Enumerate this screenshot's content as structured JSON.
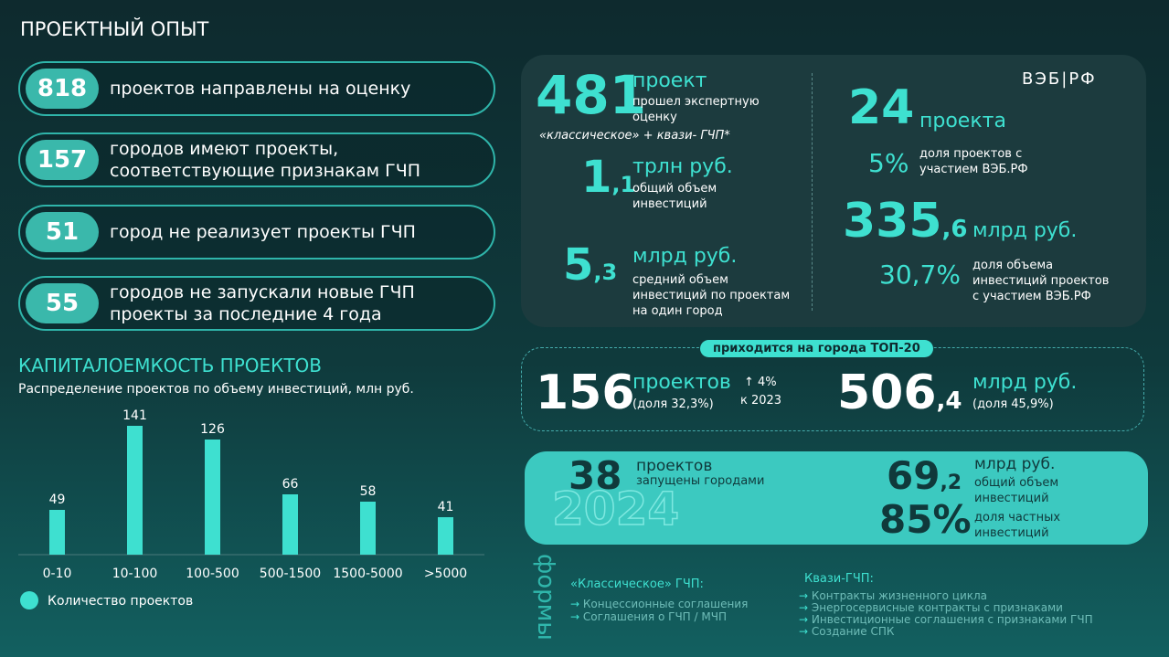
{
  "title": "ПРОЕКТНЫЙ ОПЫТ",
  "pills": [
    {
      "number": "818",
      "text": "проектов направлены на оценку"
    },
    {
      "number": "157",
      "text": "городов имеют проекты, соответствующие признакам ГЧП"
    },
    {
      "number": "51",
      "text": "город не реализует проекты ГЧП"
    },
    {
      "number": "55",
      "text": "городов не запускали новые ГЧП проекты за последние 4 года"
    }
  ],
  "logo": "ВЭБ|РФ",
  "expert": {
    "number": "481",
    "unit": "проект",
    "text": "прошел экспертную оценку",
    "note": "«классическое» + квази- ГЧП*",
    "total": {
      "int": "1",
      "frac": ",1",
      "unit": "трлн руб.",
      "text": "общий объем инвестиций"
    },
    "avg": {
      "int": "5",
      "frac": ",3",
      "unit": "млрд руб.",
      "text": "средний объем инвестиций по проектам на один город"
    },
    "veb_count": {
      "number": "24",
      "unit": "проекта",
      "share": "5%",
      "text": "доля проектов с участием ВЭБ.РФ"
    },
    "veb_volume": {
      "int": "335",
      "frac": ",6",
      "unit": "млрд руб.",
      "share": "30,7%",
      "text": "доля объема инвестиций проектов с участием ВЭБ.РФ"
    }
  },
  "top20": {
    "label": "приходится на города ТОП-20",
    "count": "156",
    "count_unit": "проектов",
    "count_share": "(доля 32,3%)",
    "growth": "↑ 4%",
    "growth_text": "к 2023",
    "vol_int": "506",
    "vol_frac": ",4",
    "vol_unit": "млрд руб.",
    "vol_share": "(доля 45,9%)"
  },
  "y2024": {
    "count": "38",
    "count_unit": "проектов",
    "count_text": "запущены городами",
    "year": "2024",
    "vol_int": "69",
    "vol_frac": ",2",
    "vol_unit": "млрд руб.",
    "vol_text": "общий объем инвестиций",
    "private": "85%",
    "private_text": "доля частных инвестиций"
  },
  "forms": {
    "label": "формы",
    "classic_title": "«Классическое» ГЧП:",
    "classic": [
      "Концессионные соглашения",
      "Соглашения о ГЧП / МЧП"
    ],
    "quasi_title": "Квази-ГЧП:",
    "quasi": [
      "Контракты жизненного цикла",
      "Энергосервисные контракты с признаками",
      "Инвестиционные соглашения с признаками ГЧП",
      "Создание СПК"
    ]
  },
  "chart_data": {
    "type": "bar",
    "title": "КАПИТАЛОЕМКОСТЬ ПРОЕКТОВ",
    "subtitle": "Распределение проектов по объему инвестиций, млн руб.",
    "categories": [
      "0-10",
      "10-100",
      "100-500",
      "500-1500",
      "1500-5000",
      ">5000"
    ],
    "values": [
      49,
      141,
      126,
      66,
      58,
      41
    ],
    "color": "#3ee0d0",
    "series_name": "Количество проектов",
    "ylim": [
      0,
      150
    ]
  }
}
